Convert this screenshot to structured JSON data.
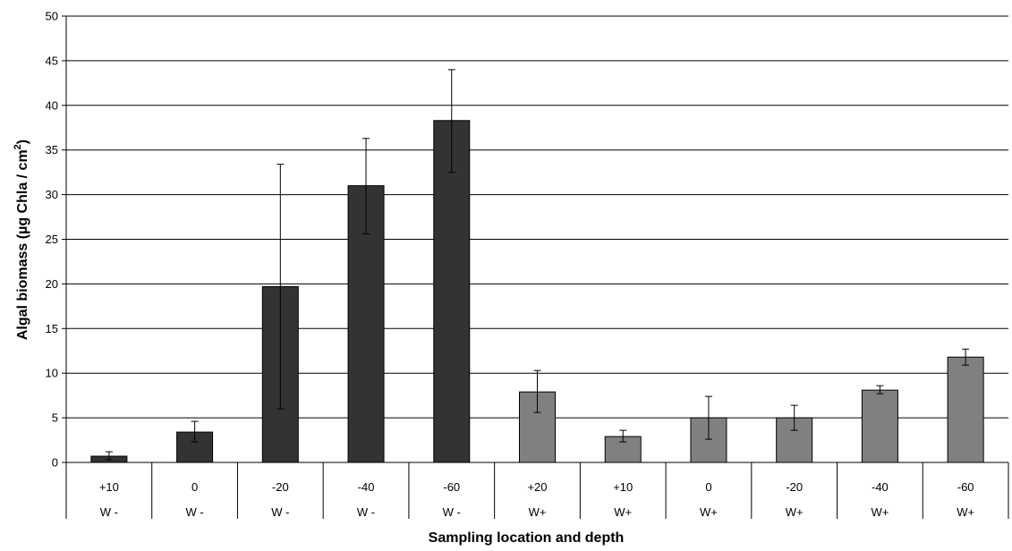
{
  "chart_data": {
    "type": "bar",
    "ylabel": "Algal biomass (µg Chla / cm",
    "ylabel_superscript": "2",
    "ylabel_suffix": ")",
    "xlabel": "Sampling location and depth",
    "ylim": [
      0,
      50
    ],
    "yticks": [
      "0",
      "5",
      "10",
      "15",
      "20",
      "25",
      "30",
      "35",
      "40",
      "45",
      "50"
    ],
    "grid": true,
    "categories": [
      {
        "depth": "+10",
        "group": "W -"
      },
      {
        "depth": "0",
        "group": "W -"
      },
      {
        "depth": "-20",
        "group": "W -"
      },
      {
        "depth": "-40",
        "group": "W -"
      },
      {
        "depth": "-60",
        "group": "W -"
      },
      {
        "depth": "+20",
        "group": "W+"
      },
      {
        "depth": "+10",
        "group": "W+"
      },
      {
        "depth": "0",
        "group": "W+"
      },
      {
        "depth": "-20",
        "group": "W+"
      },
      {
        "depth": "-40",
        "group": "W+"
      },
      {
        "depth": "-60",
        "group": "W+"
      }
    ],
    "values": [
      0.7,
      3.4,
      19.7,
      31.0,
      38.3,
      7.9,
      2.9,
      5.0,
      5.0,
      8.1,
      11.8
    ],
    "error_low": [
      0.3,
      2.3,
      6.0,
      25.6,
      32.5,
      5.6,
      2.3,
      2.6,
      3.6,
      7.7,
      10.9
    ],
    "error_high": [
      1.2,
      4.6,
      33.4,
      36.3,
      44.0,
      10.3,
      3.6,
      7.4,
      6.4,
      8.6,
      12.7
    ],
    "colors": {
      "W -": "#333333",
      "W+": "#808080"
    }
  }
}
